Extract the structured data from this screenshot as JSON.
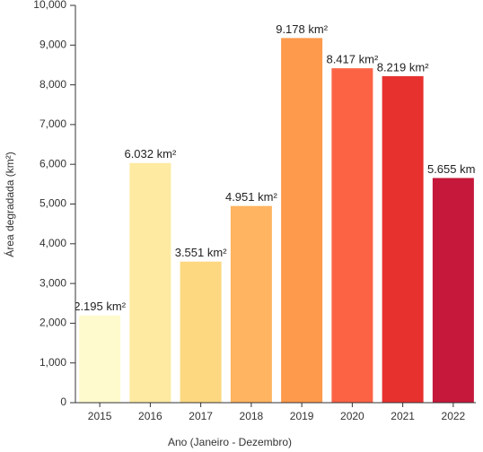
{
  "chart_data": {
    "type": "bar",
    "x_label": "Ano (Janeiro - Dezembro)",
    "y_label": "Área degradada (km²)",
    "categories": [
      "2015",
      "2016",
      "2017",
      "2018",
      "2019",
      "2020",
      "2021",
      "2022"
    ],
    "values": [
      2195,
      6032,
      3551,
      4951,
      9178,
      8417,
      8219,
      5655
    ],
    "value_labels": [
      "2.195 km²",
      "6.032 km²",
      "3.551 km²",
      "4.951 km²",
      "9.178 km²",
      "8.417 km²",
      "8.219 km²",
      "5.655 km²"
    ],
    "colors": [
      "#fffacd",
      "#feeaa1",
      "#fed881",
      "#feb461",
      "#fd9a4c",
      "#fc6345",
      "#e6312f",
      "#c5183a"
    ],
    "ylim": [
      0,
      10000
    ],
    "yticks": [
      0,
      {
        "value": 1000,
        "label": "1,000"
      },
      {
        "value": 2000,
        "label": "2,000"
      },
      {
        "value": 3000,
        "label": "3,000"
      },
      {
        "value": 4000,
        "label": "4,000"
      },
      {
        "value": 5000,
        "label": "5,000"
      },
      {
        "value": 6000,
        "label": "6,000"
      },
      {
        "value": 7000,
        "label": "7,000"
      },
      {
        "value": 8000,
        "label": "8,000"
      },
      {
        "value": 9000,
        "label": "9,000"
      },
      {
        "value": 10000,
        "label": "10,000"
      }
    ],
    "grid": false
  }
}
